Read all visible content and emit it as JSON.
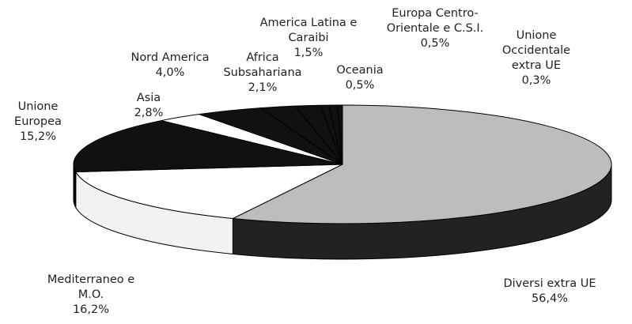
{
  "chart_data": {
    "type": "pie",
    "categories": [
      "Diversi extra UE",
      "Mediterraneo e M.O.",
      "Unione Europea",
      "Asia",
      "Nord America",
      "Africa Subsahariana",
      "America Latina e Caraibi",
      "Oceania",
      "Europa Centro-Orientale e C.S.I.",
      "Unione Occidentale extra UE"
    ],
    "values": [
      56.4,
      16.2,
      15.2,
      2.8,
      4.0,
      2.1,
      1.5,
      0.5,
      0.5,
      0.3
    ],
    "value_labels": [
      "56,4%",
      "16,2%",
      "15,2%",
      "2,8%",
      "4,0%",
      "2,1%",
      "1,5%",
      "0,5%",
      "0,5%",
      "0,3%"
    ],
    "colors": [
      "#bdbdbd",
      "#ffffff",
      "#111111",
      "#ffffff",
      "#111111",
      "#111111",
      "#111111",
      "#111111",
      "#111111",
      "#111111"
    ]
  }
}
